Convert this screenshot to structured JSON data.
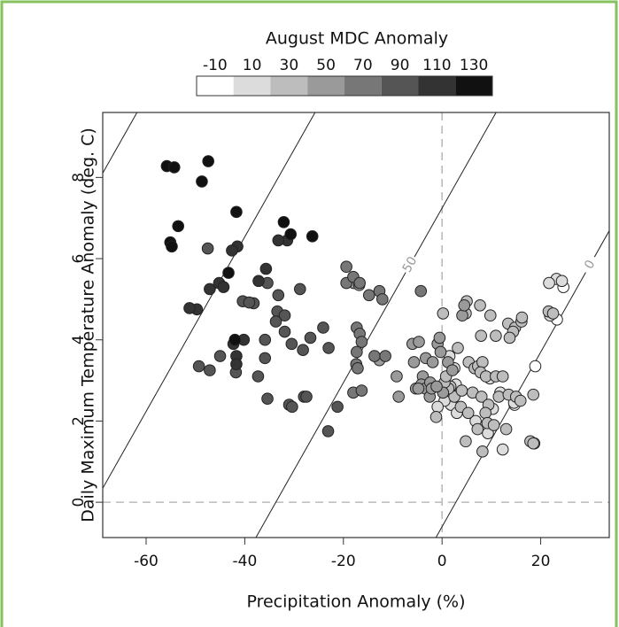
{
  "chart_data": {
    "type": "scatter",
    "legend_title": "August MDC Anomaly",
    "x_label": "Precipitation Anomaly (%)",
    "y_label": "Daily Maximum Temperature Anomaly (deg. C)",
    "xlim": [
      -68.8,
      33.9
    ],
    "ylim": [
      -0.87,
      9.6
    ],
    "xticks": [
      -60,
      -40,
      -20,
      0,
      20
    ],
    "yticks": [
      0,
      2,
      4,
      6,
      8
    ],
    "reference_x": 0,
    "reference_y": 0,
    "contour_slope": 0.215,
    "contours": [
      {
        "label": "0",
        "x_at_y0": 2.8
      },
      {
        "label": "50",
        "x_at_y0": -33.7
      },
      {
        "x_at_y0": -70.4
      },
      {
        "x_at_y0": -106.5
      }
    ],
    "series": [
      {
        "name": "-10",
        "color": "#ffffff",
        "x": [
          18.9,
          23.3,
          24.6,
          18.7,
          14.7,
          8.5
        ],
        "y": [
          3.35,
          4.5,
          5.3,
          1.45,
          2.4,
          1.85
        ]
      },
      {
        "name": "10",
        "color": "#dcdcdc",
        "x": [
          23.2,
          24.3,
          21.7,
          21.9,
          1.8,
          0.5,
          3,
          6.8,
          9.3,
          10.3,
          14.6,
          12.3,
          2.8,
          2.5,
          -0.9,
          1.5,
          9.7,
          11.8
        ],
        "y": [
          5.5,
          5.45,
          5.4,
          4.6,
          2.4,
          2.5,
          2.2,
          2,
          1.7,
          2.3,
          2.45,
          1.3,
          2.9,
          3.3,
          2.35,
          3.6,
          3.05,
          2.7
        ]
      },
      {
        "name": "30",
        "color": "#bdbdbd",
        "x": [
          0.2,
          5,
          4.8,
          7.7,
          9.8,
          7.9,
          13.4,
          14.8,
          16.1,
          16.2,
          14.4,
          13.7,
          10.9,
          3.2,
          5.4,
          6.6,
          7.3,
          8.2,
          7.8,
          8.9,
          10.9,
          12.3,
          1.7,
          2.5,
          4,
          6.2,
          8,
          9.4,
          11.5,
          13.5,
          15,
          15.9,
          18.5,
          3.8,
          5.3,
          8.8,
          1.3,
          0.5,
          7.2,
          9.2,
          10.5,
          13,
          17.9,
          18.5,
          4.8,
          8.2,
          0.8,
          -1.2,
          21.6,
          22.5
        ],
        "y": [
          4.65,
          4.95,
          4.65,
          4.85,
          4.6,
          4.1,
          4.4,
          4.3,
          4.45,
          4.55,
          4.2,
          4.05,
          4.1,
          3.8,
          3.45,
          3.3,
          3.35,
          3.45,
          3.2,
          3.1,
          3.1,
          3.1,
          2.85,
          2.6,
          2.75,
          2.7,
          2.6,
          2.4,
          2.6,
          2.65,
          2.6,
          2.5,
          2.65,
          2.35,
          2.2,
          2.2,
          2.8,
          2.95,
          1.8,
          1.95,
          1.9,
          1.8,
          1.5,
          1.45,
          1.5,
          1.25,
          3.1,
          2.1,
          4.7,
          4.65
        ]
      },
      {
        "name": "50",
        "color": "#9a9a9a",
        "x": [
          -17.9,
          -16.8,
          -12.7,
          -9.2,
          -8.8,
          -6,
          -5.7,
          -4.7,
          -3.9,
          -3.3,
          -0.9,
          -0.5,
          -0.3,
          -5.3,
          -4.2,
          -3.4,
          -2.4,
          -2.5,
          4.1,
          4.5,
          1.2,
          2.1,
          -1.9,
          -2.1,
          0.2,
          -1.1,
          -4.8
        ],
        "y": [
          5.4,
          5.35,
          3.5,
          3.1,
          2.6,
          3.9,
          3.45,
          3.95,
          3.1,
          3.55,
          3.9,
          4.05,
          3.7,
          2.8,
          2.9,
          2.8,
          2.95,
          2.6,
          4.6,
          4.85,
          3.45,
          3.25,
          3.45,
          2.8,
          2.7,
          2.85,
          2.8
        ]
      },
      {
        "name": "70",
        "color": "#777777",
        "x": [
          -19.4,
          -19.4,
          -18,
          -16.7,
          -14.8,
          -12.7,
          -12.1,
          -17.3,
          -16.7,
          -17.3,
          -16.3,
          -17.4,
          -17.1,
          -13.7,
          -4.3,
          -18,
          -16.3,
          -11.5
        ],
        "y": [
          5.8,
          5.4,
          5.55,
          5.4,
          5.1,
          5.2,
          5.0,
          4.3,
          4.15,
          3.7,
          3.95,
          3.4,
          3.3,
          3.6,
          5.2,
          2.7,
          2.75,
          3.6
        ]
      },
      {
        "name": "90",
        "color": "#555555",
        "x": [
          -47.5,
          -45,
          -49.3,
          -47.1,
          -41.8,
          -35.9,
          -35.9,
          -35.4,
          -37.3,
          -40.4,
          -38.2,
          -39.1,
          -33.2,
          -33.4,
          -31.9,
          -33.7,
          -31.9,
          -28.8,
          -30.5,
          -28.2,
          -28,
          -27.5,
          -31,
          -30.4,
          -35.4,
          -21.2,
          -23.1,
          -23,
          -26.7,
          -24.1
        ],
        "y": [
          6.25,
          3.6,
          3.35,
          3.25,
          3.2,
          3.55,
          4.0,
          2.55,
          3.1,
          4.95,
          4.9,
          4.92,
          5.1,
          4.7,
          4.6,
          4.45,
          4.2,
          5.25,
          3.9,
          3.75,
          2.6,
          2.6,
          2.4,
          2.35,
          5.4,
          2.35,
          1.75,
          3.8,
          4.05,
          4.3
        ]
      },
      {
        "name": "110",
        "color": "#333333",
        "x": [
          -31.4,
          -33.2,
          -41.5,
          -42.6,
          -47.1,
          -45.2,
          -49.7,
          -51.2,
          -44.3,
          -35.7,
          -37.2,
          -42.3,
          -41.7,
          -41.7,
          -40.2
        ],
        "y": [
          6.45,
          6.45,
          6.3,
          6.2,
          5.25,
          5.4,
          4.75,
          4.78,
          5.3,
          5.75,
          5.45,
          3.9,
          3.6,
          3.4,
          4.0
        ]
      },
      {
        "name": "130",
        "color": "#111111",
        "x": [
          -55.8,
          -54.3,
          -47.4,
          -48.7,
          -53.5,
          -41.7,
          -55.1,
          -54.8,
          -43.3,
          -32.1,
          -30.7,
          -26.3,
          -42
        ],
        "y": [
          8.28,
          8.25,
          8.4,
          7.9,
          6.8,
          7.15,
          6.4,
          6.3,
          5.65,
          6.9,
          6.6,
          6.55,
          4.0
        ]
      }
    ]
  }
}
